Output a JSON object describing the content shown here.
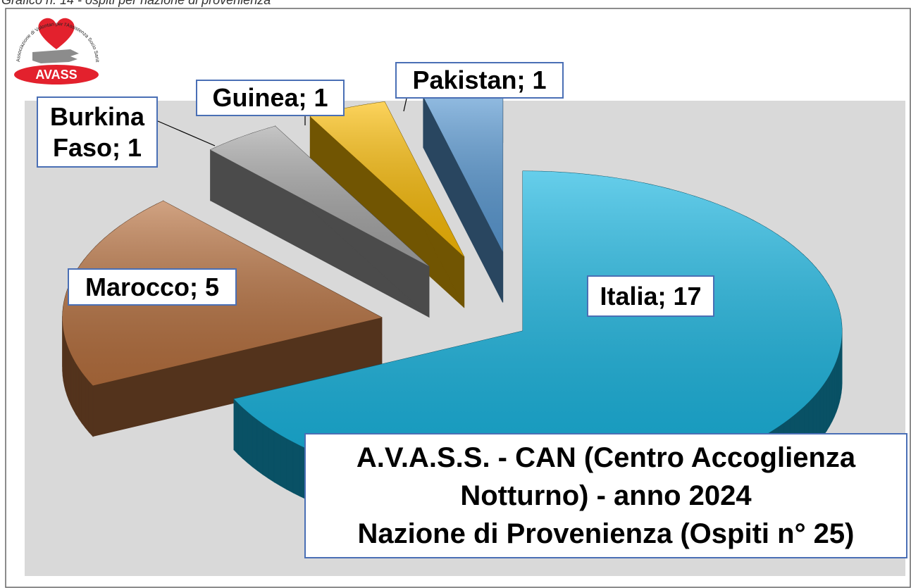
{
  "caption": "Grafico n. 14 - ospiti per nazione di provenienza",
  "logo": {
    "name": "AVASS",
    "motto": "Associazione di Volontari per l'Assistenza Socio Sanitaria"
  },
  "chart_data": {
    "type": "pie3d",
    "title": "A.V.A.S.S. - CAN (Centro Accoglienza\nNotturno) - anno 2024\nNazione di Provenienza (Ospiti n° 25)",
    "values": [
      17,
      5,
      1,
      1,
      1
    ],
    "value_labels": [
      "Italia; 17",
      "Marocco; 5",
      "Burkina Faso; 1",
      "Guinea; 1",
      "Pakistan; 1"
    ],
    "colors": [
      "#14b4e0",
      "#b8713f",
      "#a6a6a6",
      "#fbbc05",
      "#5b9bd5"
    ]
  }
}
